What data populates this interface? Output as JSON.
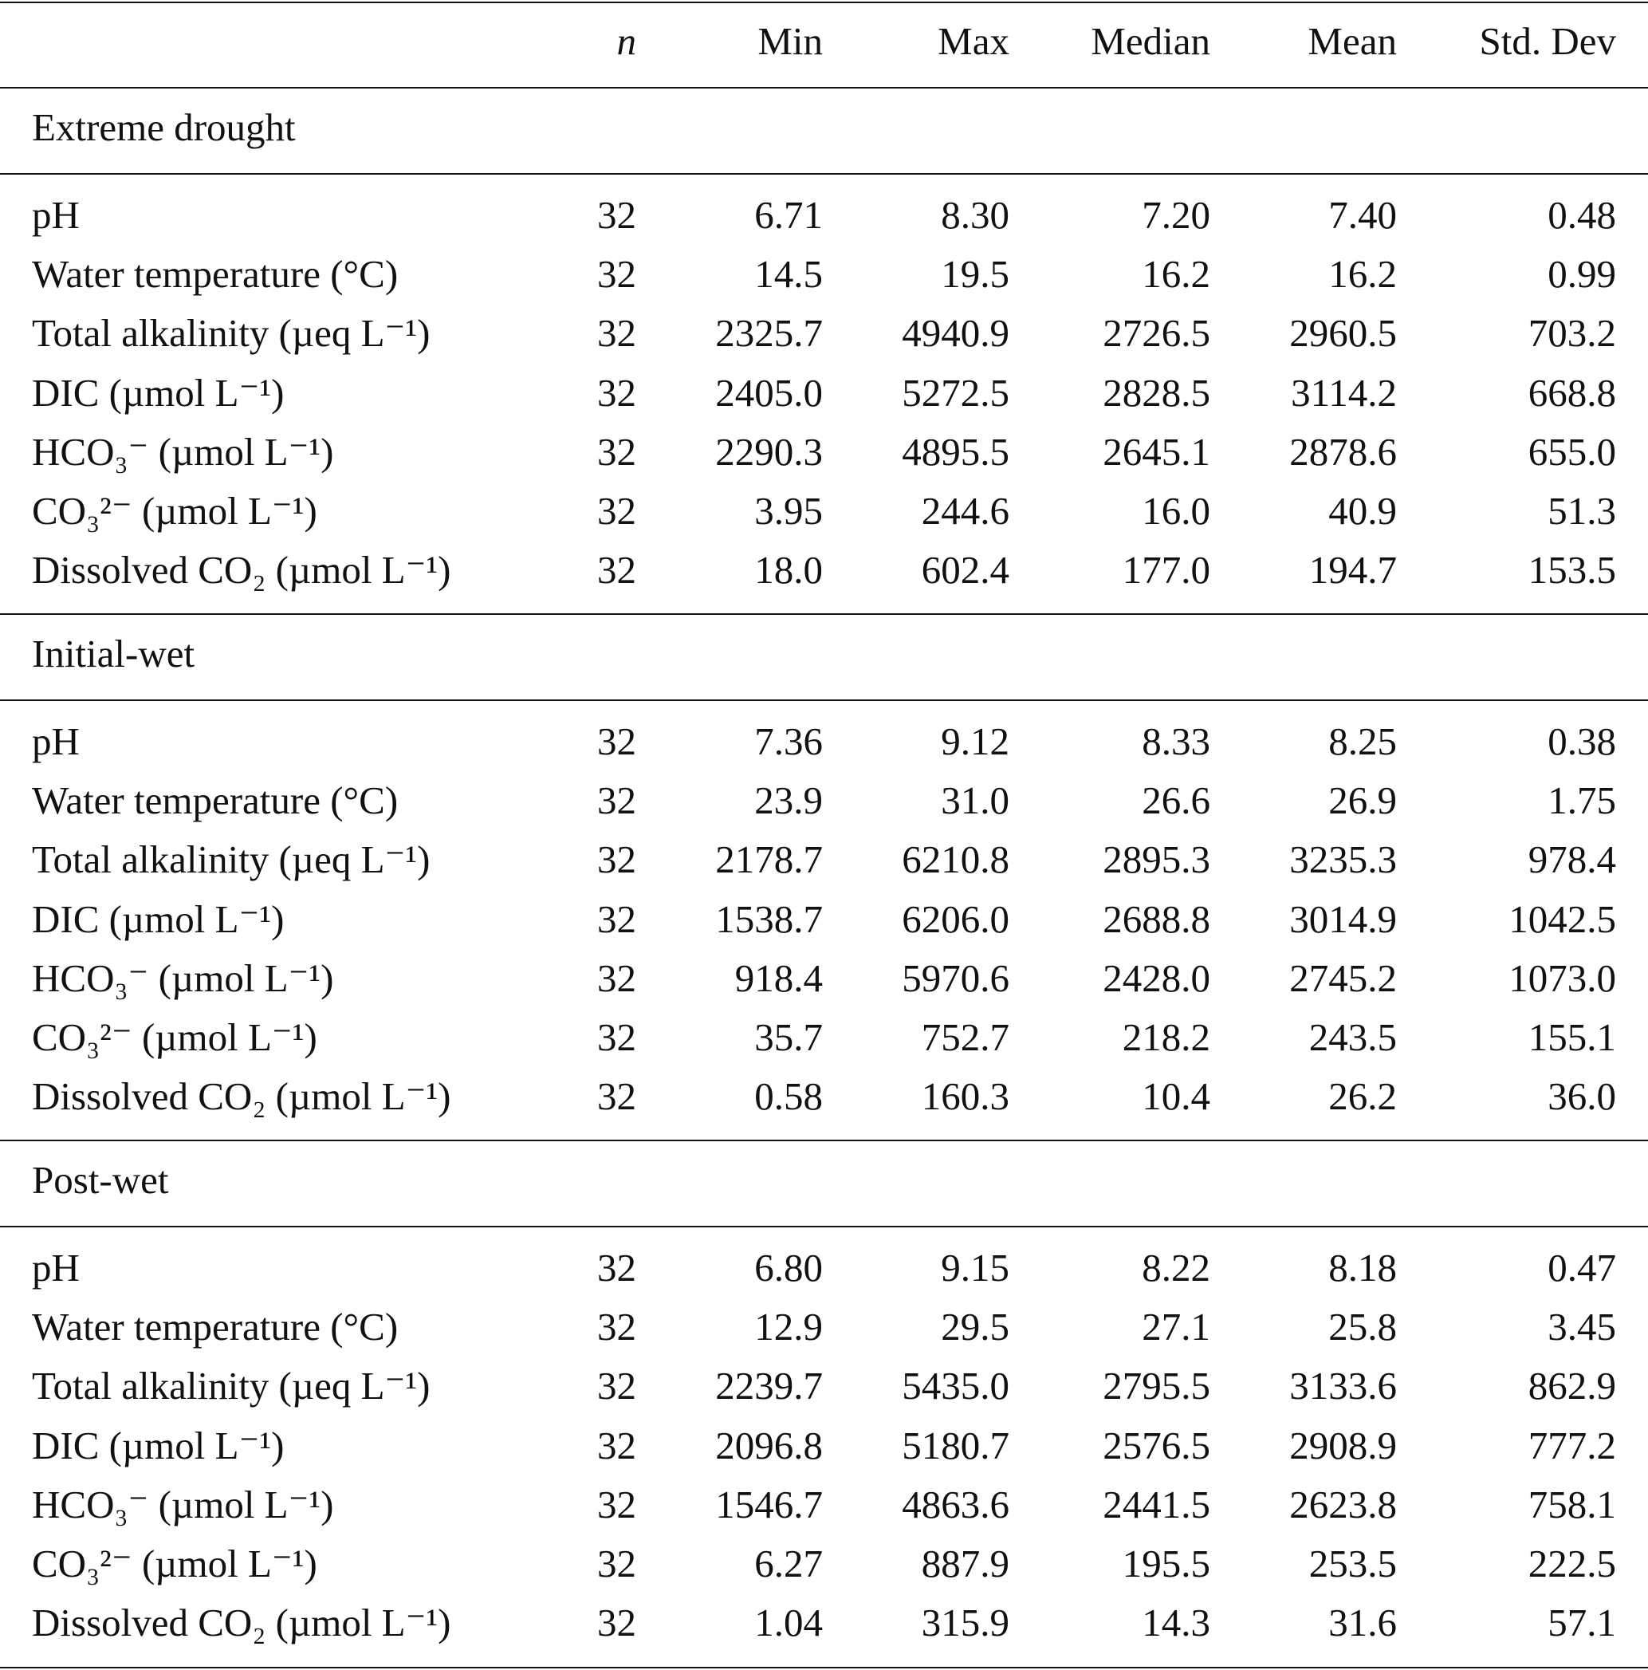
{
  "header": {
    "columns": [
      "n",
      "Min",
      "Max",
      "Median",
      "Mean",
      "Std. Dev"
    ]
  },
  "sections": [
    {
      "title": "Extreme drought",
      "rows": [
        {
          "label": "pH",
          "values": [
            "32",
            "6.71",
            "8.30",
            "7.20",
            "7.40",
            "0.48"
          ]
        },
        {
          "label": "Water temperature (°C)",
          "values": [
            "32",
            "14.5",
            "19.5",
            "16.2",
            "16.2",
            "0.99"
          ]
        },
        {
          "label": "Total alkalinity (µeq L⁻¹)",
          "values": [
            "32",
            "2325.7",
            "4940.9",
            "2726.5",
            "2960.5",
            "703.2"
          ]
        },
        {
          "label": "DIC (µmol L⁻¹)",
          "values": [
            "32",
            "2405.0",
            "5272.5",
            "2828.5",
            "3114.2",
            "668.8"
          ]
        },
        {
          "label": "HCO₃⁻ (µmol L⁻¹)",
          "values": [
            "32",
            "2290.3",
            "4895.5",
            "2645.1",
            "2878.6",
            "655.0"
          ]
        },
        {
          "label": "CO₃²⁻ (µmol L⁻¹)",
          "values": [
            "32",
            "3.95",
            "244.6",
            "16.0",
            "40.9",
            "51.3"
          ]
        },
        {
          "label": "Dissolved CO₂ (µmol L⁻¹)",
          "values": [
            "32",
            "18.0",
            "602.4",
            "177.0",
            "194.7",
            "153.5"
          ]
        }
      ]
    },
    {
      "title": "Initial-wet",
      "rows": [
        {
          "label": "pH",
          "values": [
            "32",
            "7.36",
            "9.12",
            "8.33",
            "8.25",
            "0.38"
          ]
        },
        {
          "label": "Water temperature (°C)",
          "values": [
            "32",
            "23.9",
            "31.0",
            "26.6",
            "26.9",
            "1.75"
          ]
        },
        {
          "label": "Total alkalinity (µeq L⁻¹)",
          "values": [
            "32",
            "2178.7",
            "6210.8",
            "2895.3",
            "3235.3",
            "978.4"
          ]
        },
        {
          "label": "DIC (µmol L⁻¹)",
          "values": [
            "32",
            "1538.7",
            "6206.0",
            "2688.8",
            "3014.9",
            "1042.5"
          ]
        },
        {
          "label": "HCO₃⁻ (µmol L⁻¹)",
          "values": [
            "32",
            "918.4",
            "5970.6",
            "2428.0",
            "2745.2",
            "1073.0"
          ]
        },
        {
          "label": "CO₃²⁻ (µmol L⁻¹)",
          "values": [
            "32",
            "35.7",
            "752.7",
            "218.2",
            "243.5",
            "155.1"
          ]
        },
        {
          "label": "Dissolved CO₂ (µmol L⁻¹)",
          "values": [
            "32",
            "0.58",
            "160.3",
            "10.4",
            "26.2",
            "36.0"
          ]
        }
      ]
    },
    {
      "title": "Post-wet",
      "rows": [
        {
          "label": "pH",
          "values": [
            "32",
            "6.80",
            "9.15",
            "8.22",
            "8.18",
            "0.47"
          ]
        },
        {
          "label": "Water temperature (°C)",
          "values": [
            "32",
            "12.9",
            "29.5",
            "27.1",
            "25.8",
            "3.45"
          ]
        },
        {
          "label": "Total alkalinity (µeq L⁻¹)",
          "values": [
            "32",
            "2239.7",
            "5435.0",
            "2795.5",
            "3133.6",
            "862.9"
          ]
        },
        {
          "label": "DIC (µmol L⁻¹)",
          "values": [
            "32",
            "2096.8",
            "5180.7",
            "2576.5",
            "2908.9",
            "777.2"
          ]
        },
        {
          "label": "HCO₃⁻ (µmol L⁻¹)",
          "values": [
            "32",
            "1546.7",
            "4863.6",
            "2441.5",
            "2623.8",
            "758.1"
          ]
        },
        {
          "label": "CO₃²⁻ (µmol L⁻¹)",
          "values": [
            "32",
            "6.27",
            "887.9",
            "195.5",
            "253.5",
            "222.5"
          ]
        },
        {
          "label": "Dissolved CO₂ (µmol L⁻¹)",
          "values": [
            "32",
            "1.04",
            "315.9",
            "14.3",
            "31.6",
            "57.1"
          ]
        }
      ]
    }
  ]
}
